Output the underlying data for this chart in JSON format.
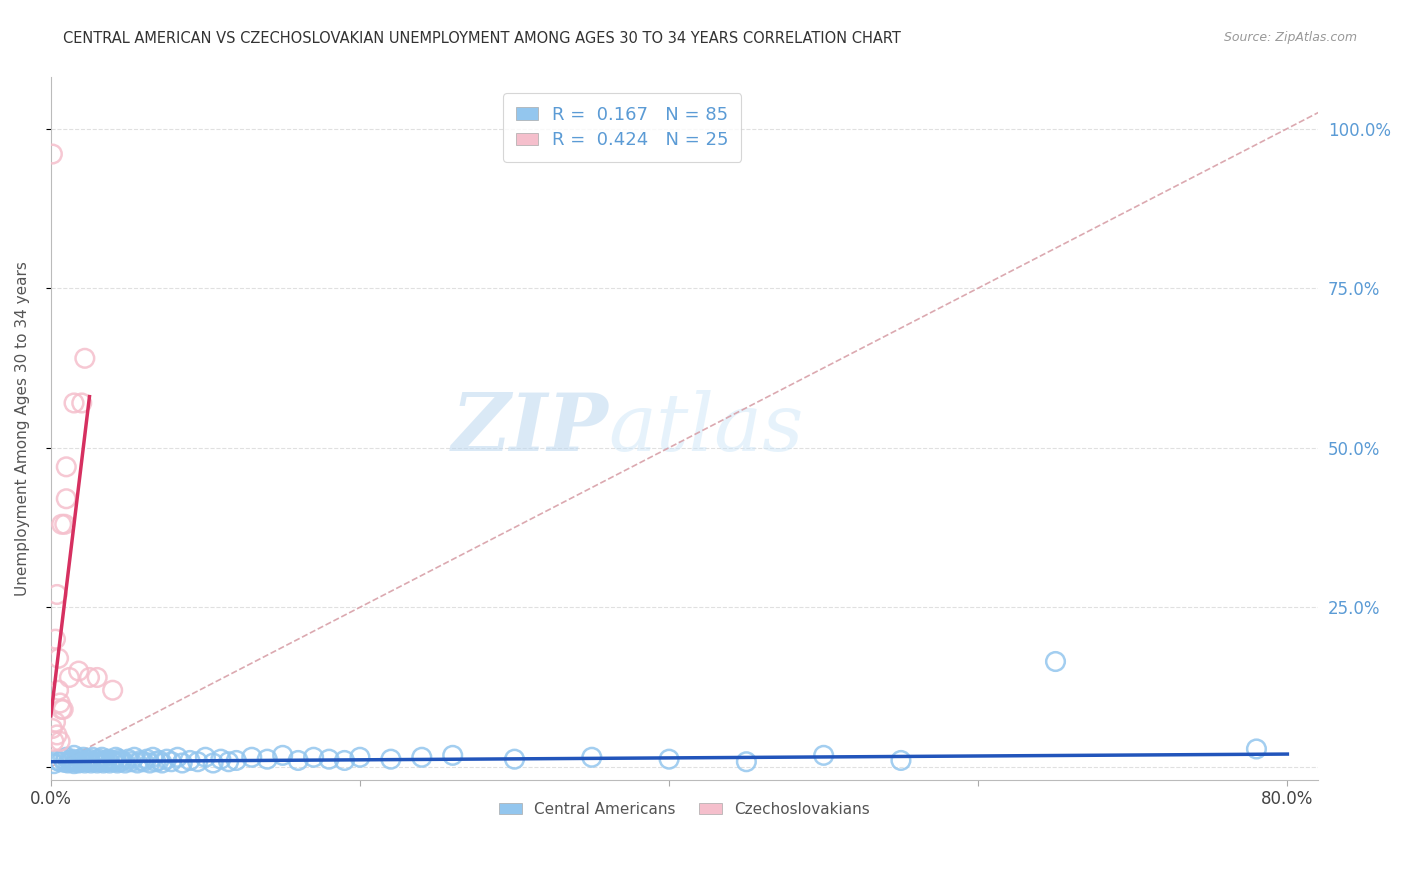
{
  "title": "CENTRAL AMERICAN VS CZECHOSLOVAKIAN UNEMPLOYMENT AMONG AGES 30 TO 34 YEARS CORRELATION CHART",
  "source": "Source: ZipAtlas.com",
  "ylabel": "Unemployment Among Ages 30 to 34 years",
  "xlim": [
    0.0,
    0.82
  ],
  "ylim": [
    -0.02,
    1.08
  ],
  "xtick_positions": [
    0.0,
    0.2,
    0.4,
    0.6,
    0.8
  ],
  "xticklabels_show": [
    "0.0%",
    "",
    "",
    "",
    "80.0%"
  ],
  "yticks": [
    0.0,
    0.25,
    0.5,
    0.75,
    1.0
  ],
  "yticklabels_right": [
    "",
    "25.0%",
    "50.0%",
    "75.0%",
    "100.0%"
  ],
  "watermark_zip": "ZIP",
  "watermark_atlas": "atlas",
  "legend_r_blue": "0.167",
  "legend_n_blue": "85",
  "legend_r_pink": "0.424",
  "legend_n_pink": "25",
  "blue_scatter_color": "#93C6EE",
  "pink_scatter_color": "#F5BFCC",
  "trend_blue_color": "#2255BB",
  "trend_pink_color": "#D63060",
  "ref_line_color": "#D8A0A8",
  "grid_color": "#DDDDDD",
  "title_color": "#333333",
  "source_color": "#999999",
  "ylabel_color": "#555555",
  "right_tick_color": "#5B9BD5",
  "blue_scatter_x": [
    0.002,
    0.004,
    0.006,
    0.008,
    0.009,
    0.01,
    0.011,
    0.012,
    0.013,
    0.014,
    0.015,
    0.015,
    0.016,
    0.017,
    0.018,
    0.019,
    0.02,
    0.021,
    0.022,
    0.023,
    0.024,
    0.025,
    0.026,
    0.027,
    0.028,
    0.029,
    0.03,
    0.031,
    0.032,
    0.033,
    0.034,
    0.035,
    0.036,
    0.037,
    0.038,
    0.04,
    0.041,
    0.042,
    0.043,
    0.044,
    0.045,
    0.046,
    0.048,
    0.05,
    0.052,
    0.054,
    0.056,
    0.058,
    0.06,
    0.062,
    0.064,
    0.066,
    0.068,
    0.07,
    0.072,
    0.075,
    0.078,
    0.082,
    0.085,
    0.09,
    0.095,
    0.1,
    0.105,
    0.11,
    0.115,
    0.12,
    0.13,
    0.14,
    0.15,
    0.16,
    0.17,
    0.18,
    0.19,
    0.2,
    0.22,
    0.24,
    0.26,
    0.3,
    0.35,
    0.4,
    0.45,
    0.5,
    0.55,
    0.65,
    0.78
  ],
  "blue_scatter_y": [
    0.005,
    0.01,
    0.008,
    0.012,
    0.007,
    0.015,
    0.006,
    0.01,
    0.008,
    0.012,
    0.005,
    0.018,
    0.008,
    0.01,
    0.006,
    0.012,
    0.008,
    0.015,
    0.006,
    0.01,
    0.008,
    0.012,
    0.006,
    0.015,
    0.008,
    0.01,
    0.006,
    0.012,
    0.008,
    0.015,
    0.006,
    0.01,
    0.008,
    0.012,
    0.006,
    0.01,
    0.008,
    0.015,
    0.006,
    0.012,
    0.008,
    0.01,
    0.006,
    0.012,
    0.008,
    0.015,
    0.006,
    0.01,
    0.008,
    0.012,
    0.006,
    0.015,
    0.008,
    0.01,
    0.006,
    0.012,
    0.008,
    0.015,
    0.006,
    0.01,
    0.008,
    0.015,
    0.006,
    0.012,
    0.008,
    0.01,
    0.015,
    0.012,
    0.018,
    0.01,
    0.015,
    0.012,
    0.01,
    0.015,
    0.012,
    0.015,
    0.018,
    0.012,
    0.015,
    0.012,
    0.008,
    0.018,
    0.01,
    0.165,
    0.028
  ],
  "pink_scatter_x": [
    0.001,
    0.001,
    0.002,
    0.003,
    0.003,
    0.004,
    0.004,
    0.005,
    0.005,
    0.006,
    0.006,
    0.007,
    0.007,
    0.008,
    0.009,
    0.01,
    0.01,
    0.012,
    0.015,
    0.018,
    0.02,
    0.022,
    0.025,
    0.03,
    0.04
  ],
  "pink_scatter_y": [
    0.96,
    0.06,
    0.04,
    0.07,
    0.2,
    0.05,
    0.27,
    0.12,
    0.17,
    0.04,
    0.1,
    0.38,
    0.09,
    0.09,
    0.38,
    0.42,
    0.47,
    0.14,
    0.57,
    0.15,
    0.57,
    0.64,
    0.14,
    0.14,
    0.12
  ],
  "pink_trend_x0": 0.0,
  "pink_trend_y0": 0.08,
  "pink_trend_x1": 0.025,
  "pink_trend_y1": 0.58,
  "blue_trend_x0": 0.0,
  "blue_trend_y0": 0.008,
  "blue_trend_x1": 0.8,
  "blue_trend_y1": 0.02
}
